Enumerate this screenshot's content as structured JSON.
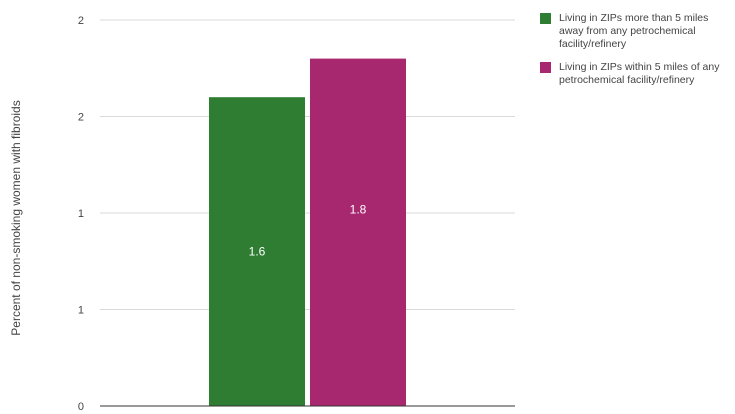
{
  "chart_data": {
    "type": "bar",
    "title": "",
    "ylabel": "Percent of non-smoking women with fibroids",
    "ylim": [
      0,
      2.0
    ],
    "y_ticks": [
      {
        "value": 0,
        "label": "0"
      },
      {
        "value": 0.5,
        "label": "1"
      },
      {
        "value": 1.0,
        "label": "1"
      },
      {
        "value": 1.5,
        "label": "2"
      },
      {
        "value": 2.0,
        "label": "2"
      }
    ],
    "grid": true,
    "legend_position": "right",
    "series": [
      {
        "name": "Living in ZIPs more than 5 miles away from any petrochemical facility/refinery",
        "value": 1.6,
        "label": "1.6",
        "color": "#2e7d32"
      },
      {
        "name": "Living in ZIPs within 5 miles of any petrochemical facility/refinery",
        "value": 1.8,
        "label": "1.8",
        "color": "#a8286f"
      }
    ]
  }
}
